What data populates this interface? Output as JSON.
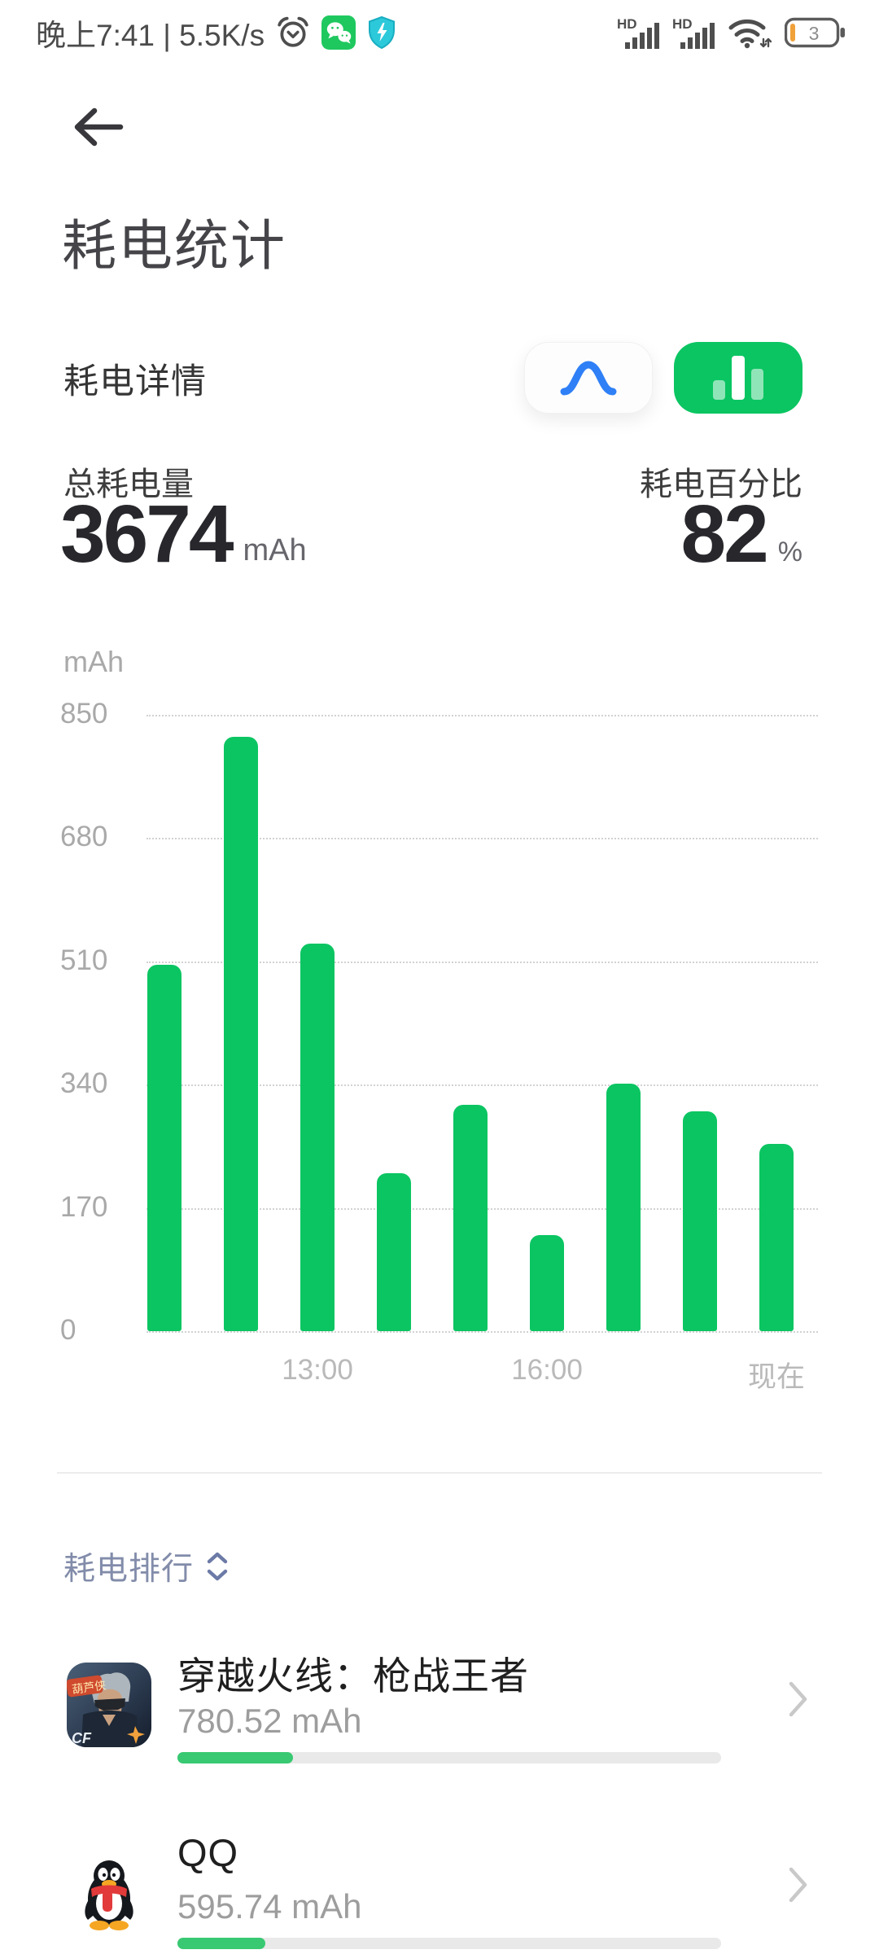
{
  "status_bar": {
    "time_and_speed": "晚上7:41 | 5.5K/s",
    "battery_level": "3",
    "icons": [
      "alarm-icon",
      "wechat-icon",
      "shield-icon",
      "hd-signal-icon",
      "hd-signal-icon",
      "wifi-icon",
      "battery-icon"
    ]
  },
  "header": {
    "title": "耗电统计"
  },
  "detail_section": {
    "title": "耗电详情",
    "toggles": [
      {
        "name": "line-chart-view",
        "active": false
      },
      {
        "name": "bar-chart-view",
        "active": true
      }
    ]
  },
  "summary": {
    "total": {
      "label": "总耗电量",
      "value": "3674",
      "unit": "mAh"
    },
    "percent": {
      "label": "耗电百分比",
      "value": "82",
      "unit": "%"
    }
  },
  "chart_data": {
    "type": "bar",
    "title": "",
    "ylabel": "mAh",
    "ylim": [
      0,
      850
    ],
    "y_ticks": [
      850,
      680,
      510,
      340,
      170,
      0
    ],
    "values": [
      505,
      820,
      535,
      218,
      312,
      133,
      341,
      303,
      258
    ],
    "x_tick_labels": [
      {
        "label": "13:00",
        "bar_index": 2
      },
      {
        "label": "16:00",
        "bar_index": 5
      },
      {
        "label": "现在",
        "bar_index": 8
      }
    ],
    "grid": "dotted horizontal",
    "legend": "none"
  },
  "ranking": {
    "title": "耗电排行",
    "sort_icon": "sort-arrows-icon",
    "total_mah": 3674,
    "apps": [
      {
        "name": "穿越火线：枪战王者",
        "consumption": "780.52 mAh",
        "value_mah": 780.52,
        "icon": "crossfire-game-icon"
      },
      {
        "name": "QQ",
        "consumption": "595.74 mAh",
        "value_mah": 595.74,
        "icon": "qq-icon"
      }
    ]
  },
  "colors": {
    "accent_green": "#0bc562",
    "progress_green": "#38c972",
    "toggle_blue": "#2f80f6",
    "low_battery_orange": "#f0a13a",
    "axis_gray": "#a9a9a9",
    "rank_blue_gray": "#828caa"
  }
}
